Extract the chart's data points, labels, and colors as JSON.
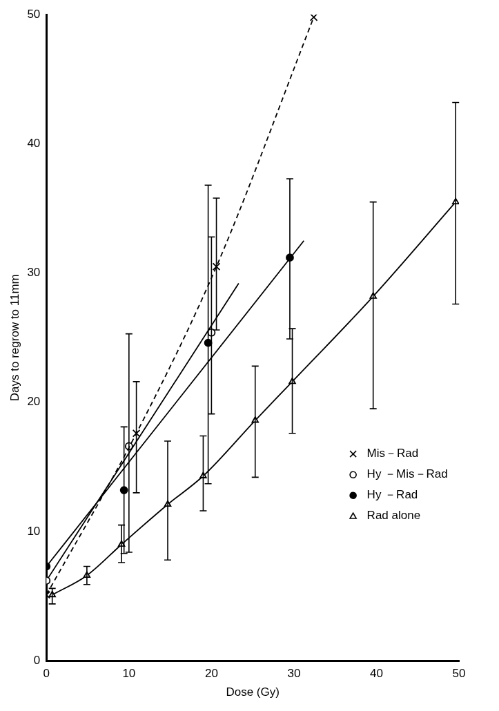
{
  "chart_data": {
    "type": "line",
    "xlabel": "Dose (Gy)",
    "ylabel": "Days to regrow to 11mm",
    "xlim": [
      0,
      50
    ],
    "xticks": [
      0,
      10,
      20,
      30,
      40,
      50
    ],
    "ylim": [
      0,
      50
    ],
    "yticks": [
      0,
      10,
      20,
      30,
      40,
      50
    ],
    "grid": false,
    "legend": "right",
    "series": [
      {
        "name": "Mis－Rad",
        "color": "#000000",
        "line_style": "dashed",
        "marker": "cross",
        "x": [
          0,
          10.9,
          20.6,
          32.4
        ],
        "values": [
          5.1,
          17.6,
          30.5,
          49.8
        ],
        "errors": [
          null,
          [
            13.0,
            21.6
          ],
          [
            25.6,
            35.8
          ],
          null
        ]
      },
      {
        "name": "Hy －Mis－Rad",
        "type": "scatter",
        "color": "#ffffff",
        "marker": "circle",
        "x": [
          0,
          10,
          20
        ],
        "values": [
          6.2,
          16.6,
          25.4
        ],
        "errors": [
          null,
          [
            8.4,
            25.3
          ],
          [
            19.1,
            32.8
          ]
        ]
      },
      {
        "name": "Hy －Rad",
        "type": "scatter",
        "color": "#000000",
        "marker": "circle",
        "x": [
          0,
          9.4,
          19.6,
          29.5
        ],
        "values": [
          7.3,
          13.2,
          24.6,
          31.2
        ],
        "errors": [
          null,
          [
            8.3,
            18.1
          ],
          [
            13.7,
            36.8
          ],
          [
            24.9,
            37.3
          ]
        ]
      },
      {
        "name": "Rad alone",
        "color": "#000000",
        "line_style": "solid",
        "marker": "triangle",
        "x": [
          0.7,
          4.9,
          9.1,
          14.7,
          19.0,
          25.3,
          29.8,
          39.6,
          49.6
        ],
        "values": [
          5.1,
          6.6,
          9.0,
          12.1,
          14.3,
          18.6,
          21.6,
          28.2,
          35.5
        ],
        "errors": [
          [
            4.4,
            5.6
          ],
          [
            5.9,
            7.3
          ],
          [
            7.6,
            10.5
          ],
          [
            7.8,
            17.0
          ],
          [
            11.6,
            17.4
          ],
          [
            14.2,
            22.8
          ],
          [
            17.6,
            25.7
          ],
          [
            19.5,
            35.5
          ],
          [
            27.6,
            43.2
          ]
        ]
      },
      {
        "color": "#000000",
        "line_style": "solid",
        "marker": "none",
        "x": [
          0,
          23.3
        ],
        "values": [
          6.2,
          29.2
        ]
      },
      {
        "color": "#000000",
        "line_style": "solid",
        "marker": "none",
        "x": [
          0,
          31.2
        ],
        "values": [
          7.3,
          32.5
        ]
      }
    ]
  }
}
